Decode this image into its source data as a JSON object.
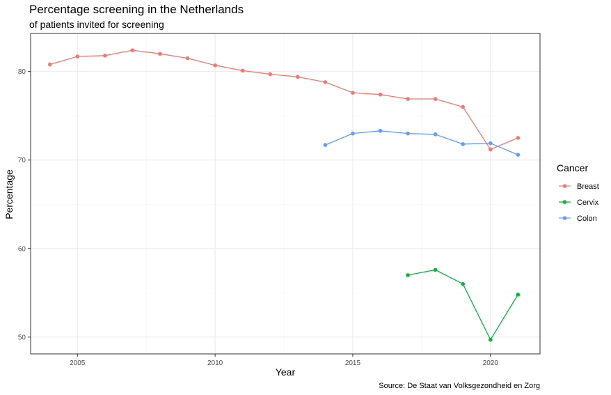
{
  "chart_data": {
    "type": "line",
    "title": "Percentage screening in the Netherlands",
    "subtitle": "of patients invited for screening",
    "xlabel": "Year",
    "ylabel": "Percentage",
    "caption": "Source: De Staat van Volksgezondheid en Zorg",
    "xlim": [
      2003.3,
      2021.8
    ],
    "ylim": [
      48.1,
      84.3
    ],
    "x_ticks": [
      2005,
      2010,
      2015,
      2020
    ],
    "y_ticks": [
      50,
      60,
      70,
      80
    ],
    "grid": true,
    "legend": {
      "title": "Cancer",
      "position": "right"
    },
    "series": [
      {
        "name": "Breast",
        "color": "#F8766D",
        "x": [
          2004,
          2005,
          2006,
          2007,
          2008,
          2009,
          2010,
          2011,
          2012,
          2013,
          2014,
          2015,
          2016,
          2017,
          2018,
          2019,
          2020,
          2021
        ],
        "values": [
          80.8,
          81.7,
          81.8,
          82.4,
          82.0,
          81.5,
          80.7,
          80.1,
          79.7,
          79.4,
          78.8,
          77.6,
          77.4,
          76.9,
          76.9,
          76.0,
          71.2,
          72.5
        ]
      },
      {
        "name": "Cervix",
        "color": "#00BA38",
        "x": [
          2017,
          2018,
          2019,
          2020,
          2021
        ],
        "values": [
          57.0,
          57.6,
          56.0,
          49.7,
          54.8
        ]
      },
      {
        "name": "Colon",
        "color": "#619CFF",
        "x": [
          2014,
          2015,
          2016,
          2017,
          2018,
          2019,
          2020,
          2021
        ],
        "values": [
          71.7,
          73.0,
          73.3,
          73.0,
          72.9,
          71.8,
          71.9,
          70.6
        ]
      }
    ]
  }
}
